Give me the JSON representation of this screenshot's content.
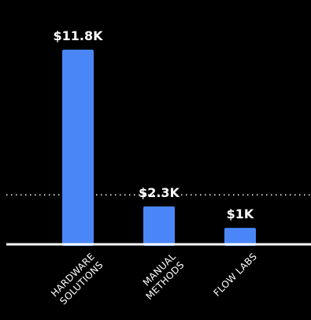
{
  "chart_data": {
    "type": "bar",
    "categories": [
      [
        "HARDWARE",
        "SOLUTIONS"
      ],
      [
        "MANUAL",
        "METHODS"
      ],
      [
        "FLOW LABS"
      ]
    ],
    "values": [
      11.8,
      2.3,
      1.0
    ],
    "value_labels": [
      "$11.8K",
      "$2.3K",
      "$1K"
    ],
    "unit": "$K",
    "reference_line": {
      "style": "dotted",
      "value": 3.0
    },
    "ylim": [
      0,
      12.9
    ],
    "grid": false,
    "legend": "none"
  },
  "colors": {
    "background": "#000000",
    "bar": "#4a86f7",
    "text": "#ffffff",
    "axis": "#ffffff",
    "reference_line": "#ffffff"
  }
}
